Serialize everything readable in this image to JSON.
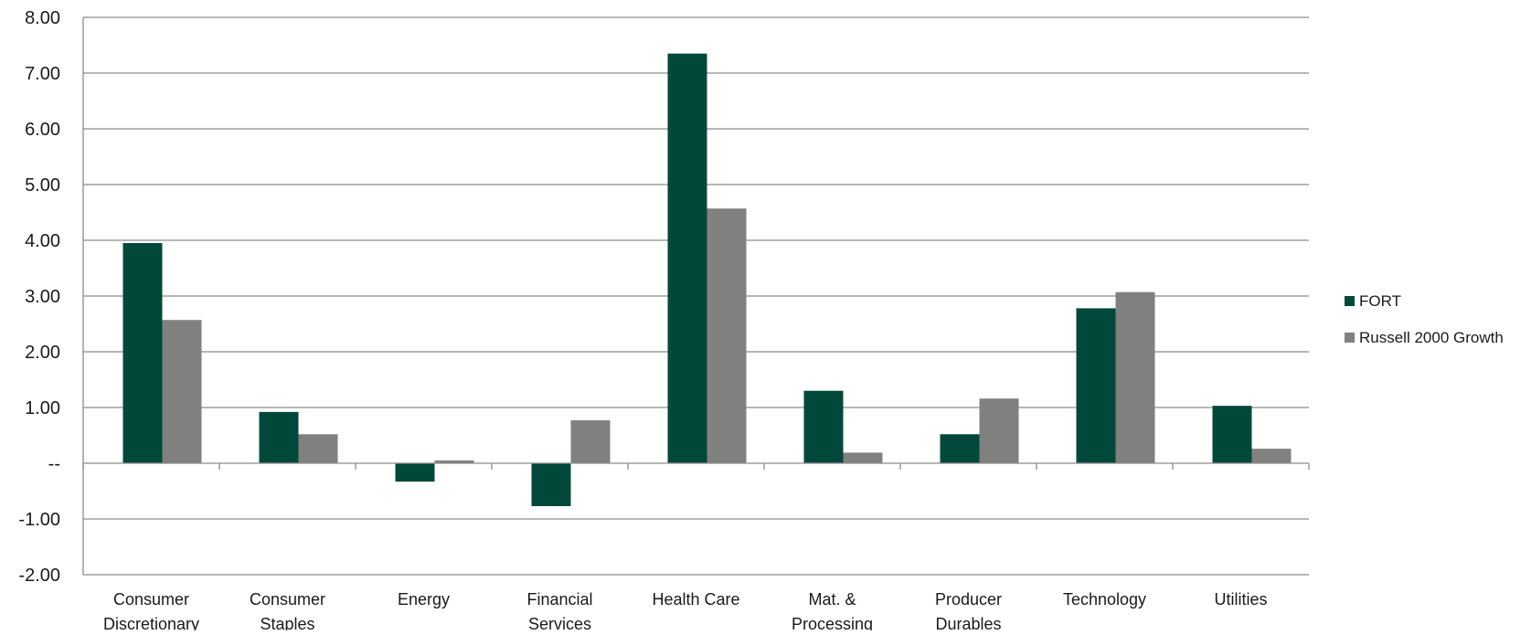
{
  "chart_data": {
    "type": "bar",
    "title": "",
    "xlabel": "",
    "ylabel": "",
    "ylim": [
      -2,
      8
    ],
    "y_ticks": [
      {
        "value": 8,
        "label": "8.00"
      },
      {
        "value": 7,
        "label": "7.00"
      },
      {
        "value": 6,
        "label": "6.00"
      },
      {
        "value": 5,
        "label": "5.00"
      },
      {
        "value": 4,
        "label": "4.00"
      },
      {
        "value": 3,
        "label": "3.00"
      },
      {
        "value": 2,
        "label": "2.00"
      },
      {
        "value": 1,
        "label": "1.00"
      },
      {
        "value": 0,
        "label": "--"
      },
      {
        "value": -1,
        "label": "-1.00"
      },
      {
        "value": -2,
        "label": "-2.00"
      }
    ],
    "grid": true,
    "legend_position": "right",
    "categories": [
      [
        "Consumer",
        "Discretionary"
      ],
      [
        "Consumer",
        "Staples"
      ],
      [
        "Energy"
      ],
      [
        "Financial",
        "Services"
      ],
      [
        "Health Care"
      ],
      [
        "Mat. &",
        "Processing"
      ],
      [
        "Producer",
        "Durables"
      ],
      [
        "Technology"
      ],
      [
        "Utilities"
      ]
    ],
    "series": [
      {
        "name": "FORT",
        "color": "#00483a",
        "values": [
          3.95,
          0.92,
          -0.33,
          -0.77,
          7.35,
          1.3,
          0.52,
          2.78,
          1.03
        ]
      },
      {
        "name": "Russell 2000 Growth",
        "color": "#808080",
        "values": [
          2.57,
          0.52,
          0.05,
          0.77,
          4.57,
          0.19,
          1.16,
          3.07,
          0.26
        ]
      }
    ]
  }
}
